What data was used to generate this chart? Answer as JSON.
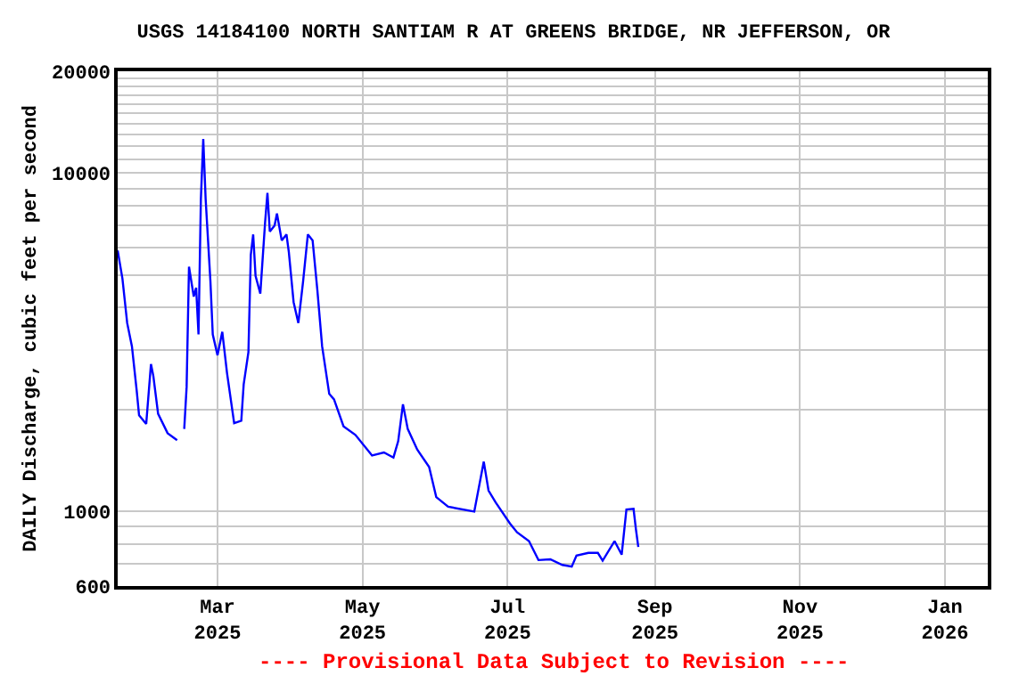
{
  "chart_data": {
    "type": "line",
    "title": "USGS 14184100 NORTH SANTIAM R AT GREENS BRIDGE, NR JEFFERSON, OR",
    "ylabel": "DAILY Discharge, cubic feet per second",
    "annotations": [
      "---- Provisional Data Subject to Revision ----"
    ],
    "x": [
      "2025-01-18",
      "2025-01-20",
      "2025-01-22",
      "2025-01-24",
      "2025-01-26",
      "2025-01-27",
      "2025-01-30",
      "2025-02-01",
      "2025-02-02",
      "2025-02-04",
      "2025-02-08",
      "2025-02-12",
      null,
      "2025-02-15",
      "2025-02-16",
      "2025-02-17",
      "2025-02-19",
      "2025-02-20",
      "2025-02-21",
      "2025-02-22",
      "2025-02-23",
      "2025-02-24",
      "2025-02-26",
      "2025-02-27",
      "2025-03-01",
      "2025-03-03",
      "2025-03-05",
      "2025-03-08",
      "2025-03-11",
      "2025-03-12",
      "2025-03-14",
      "2025-03-15",
      "2025-03-16",
      "2025-03-17",
      "2025-03-19",
      "2025-03-21",
      "2025-03-22",
      "2025-03-23",
      "2025-03-25",
      "2025-03-26",
      "2025-03-28",
      "2025-03-30",
      "2025-03-31",
      "2025-04-02",
      "2025-04-04",
      "2025-04-06",
      "2025-04-08",
      "2025-04-10",
      "2025-04-12",
      "2025-04-14",
      "2025-04-17",
      "2025-04-19",
      "2025-04-23",
      "2025-04-28",
      "2025-05-05",
      "2025-05-10",
      "2025-05-14",
      "2025-05-16",
      "2025-05-18",
      "2025-05-20",
      "2025-05-24",
      "2025-05-29",
      "2025-06-01",
      "2025-06-06",
      "2025-06-17",
      "2025-06-21",
      "2025-06-23",
      "2025-06-26",
      "2025-07-02",
      "2025-07-05",
      "2025-07-10",
      "2025-07-14",
      "2025-07-19",
      "2025-07-24",
      "2025-07-28",
      "2025-07-30",
      "2025-08-04",
      "2025-08-08",
      "2025-08-10",
      "2025-08-15",
      "2025-08-18",
      "2025-08-20",
      "2025-08-23",
      "2025-08-24",
      "2025-08-25"
    ],
    "series": [
      {
        "color": "#0000ff",
        "values": [
          5900,
          4870,
          3600,
          3070,
          2270,
          1920,
          1810,
          2720,
          2510,
          1940,
          1700,
          1620,
          null,
          1750,
          2330,
          5280,
          4310,
          4580,
          3330,
          8380,
          12600,
          8380,
          4800,
          3330,
          2890,
          3390,
          2560,
          1820,
          1850,
          2370,
          2950,
          5730,
          6580,
          4960,
          4400,
          7130,
          8730,
          6710,
          6990,
          7590,
          6320,
          6580,
          5830,
          4150,
          3600,
          4780,
          6580,
          6320,
          4500,
          3070,
          2220,
          2140,
          1780,
          1680,
          1460,
          1490,
          1440,
          1610,
          2070,
          1750,
          1520,
          1350,
          1100,
          1030,
          996,
          1400,
          1150,
          1060,
          919,
          865,
          815,
          716,
          720,
          693,
          685,
          738,
          752,
          752,
          713,
          815,
          743,
          1010,
          1015,
          883,
          783
        ]
      }
    ],
    "log": "y",
    "ylim": [
      600,
      20000
    ],
    "yticks": [
      600,
      {
        "value": 700,
        "label": null
      },
      {
        "value": 800,
        "label": null
      },
      {
        "value": 900,
        "label": null
      },
      1000,
      {
        "value": 2000,
        "label": null
      },
      {
        "value": 3000,
        "label": null
      },
      {
        "value": 4000,
        "label": null
      },
      {
        "value": 5000,
        "label": null
      },
      {
        "value": 6000,
        "label": null
      },
      {
        "value": 7000,
        "label": null
      },
      {
        "value": 8000,
        "label": null
      },
      {
        "value": 9000,
        "label": null
      },
      10000,
      {
        "value": 11000,
        "label": null
      },
      {
        "value": 12000,
        "label": null
      },
      {
        "value": 13000,
        "label": null
      },
      {
        "value": 14000,
        "label": null
      },
      {
        "value": 15000,
        "label": null
      },
      {
        "value": 16000,
        "label": null
      },
      {
        "value": 17000,
        "label": null
      },
      {
        "value": 18000,
        "label": null
      },
      {
        "value": 19000,
        "label": null
      },
      20000
    ],
    "xlim": [
      "2025-01-18",
      "2026-01-19"
    ],
    "xticks": [
      {
        "value": "2025-03-01",
        "label": "Mar\n2025"
      },
      {
        "value": "2025-05-01",
        "label": "May\n2025"
      },
      {
        "value": "2025-07-01",
        "label": "Jul\n2025"
      },
      {
        "value": "2025-09-01",
        "label": "Sep\n2025"
      },
      {
        "value": "2025-11-01",
        "label": "Nov\n2025"
      },
      {
        "value": "2026-01-01",
        "label": "Jan\n2026"
      }
    ],
    "grid": "xy",
    "legend": false
  }
}
